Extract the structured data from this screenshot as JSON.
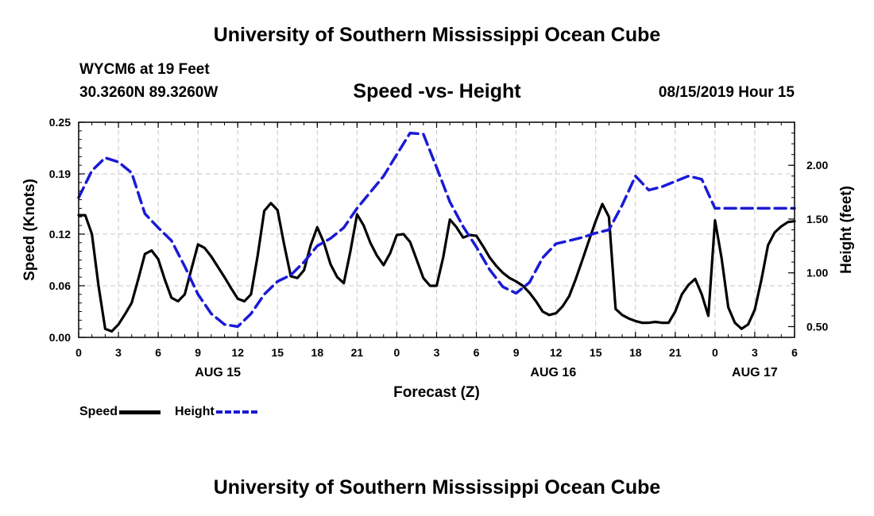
{
  "header": {
    "title": "University of Southern Mississippi Ocean Cube",
    "station": "WYCM6 at 19 Feet",
    "coords": "30.3260N 89.3260W",
    "subtitle": "Speed -vs- Height",
    "datestamp": "08/15/2019 Hour 15"
  },
  "footer": {
    "title": "University of Southern Mississippi Ocean Cube"
  },
  "legend": {
    "speed_label": "Speed",
    "height_label": "Height"
  },
  "chart_data": {
    "type": "line",
    "xlabel": "Forecast (Z)",
    "ylabel_left": "Speed (Knots)",
    "ylabel_right": "Height (feet)",
    "x_unit": "hours since AUG 15 00Z",
    "xlim": [
      0,
      54
    ],
    "ylim_left": [
      0,
      0.25
    ],
    "ylim_right": [
      0.4,
      2.4
    ],
    "x_ticks": [
      0,
      3,
      6,
      9,
      12,
      15,
      18,
      21,
      24,
      27,
      30,
      33,
      36,
      39,
      42,
      45,
      48,
      51,
      54
    ],
    "x_tick_labels": [
      "0",
      "3",
      "6",
      "9",
      "12",
      "15",
      "18",
      "21",
      "0",
      "3",
      "6",
      "9",
      "12",
      "15",
      "18",
      "21",
      "0",
      "3",
      "6"
    ],
    "day_labels": [
      {
        "x": 10.5,
        "label": "AUG 15"
      },
      {
        "x": 35.8,
        "label": "AUG 16"
      },
      {
        "x": 51,
        "label": "AUG 17"
      }
    ],
    "y_left_ticks": [
      0,
      0.06,
      0.12,
      0.19,
      0.25
    ],
    "y_left_tick_labels": [
      "0.00",
      "0.06",
      "0.12",
      "0.19",
      "0.25"
    ],
    "y_right_ticks": [
      0.5,
      1.0,
      1.5,
      2.0
    ],
    "y_right_tick_labels": [
      "0.50",
      "1.00",
      "1.50",
      "2.00"
    ],
    "grid": true,
    "series": [
      {
        "name": "Speed",
        "axis": "left",
        "color": "#000000",
        "style": "solid",
        "x": [
          0,
          0.5,
          1,
          1.5,
          2,
          2.5,
          3,
          3.5,
          4,
          4.5,
          5,
          5.5,
          6,
          6.5,
          7,
          7.5,
          8,
          8.5,
          9,
          9.5,
          10,
          10.5,
          11,
          11.5,
          12,
          12.5,
          13,
          13.5,
          14,
          14.5,
          15,
          15.5,
          16,
          16.5,
          17,
          17.5,
          18,
          18.5,
          19,
          19.5,
          20,
          20.5,
          21,
          21.5,
          22,
          22.5,
          23,
          23.5,
          24,
          24.5,
          25,
          25.5,
          26,
          26.5,
          27,
          27.5,
          28,
          28.5,
          29,
          29.5,
          30,
          30.5,
          31,
          31.5,
          32,
          32.5,
          33,
          33.5,
          34,
          34.5,
          35,
          35.5,
          36,
          36.5,
          37,
          37.5,
          38,
          38.5,
          39,
          39.5,
          40,
          40.5,
          41,
          41.5,
          42,
          42.5,
          43,
          43.5,
          44,
          44.5,
          45,
          45.5,
          46,
          46.5,
          47,
          47.5,
          48,
          48.5,
          49,
          49.5,
          50,
          50.5,
          51,
          51.5,
          52,
          52.5,
          53,
          53.5,
          54
        ],
        "values": [
          0.142,
          0.142,
          0.12,
          0.06,
          0.01,
          0.007,
          0.015,
          0.027,
          0.04,
          0.068,
          0.097,
          0.101,
          0.091,
          0.067,
          0.046,
          0.042,
          0.05,
          0.079,
          0.108,
          0.104,
          0.094,
          0.082,
          0.07,
          0.057,
          0.045,
          0.042,
          0.05,
          0.095,
          0.147,
          0.156,
          0.148,
          0.108,
          0.071,
          0.069,
          0.078,
          0.107,
          0.128,
          0.11,
          0.085,
          0.07,
          0.063,
          0.1,
          0.143,
          0.13,
          0.11,
          0.095,
          0.084,
          0.098,
          0.119,
          0.12,
          0.111,
          0.09,
          0.069,
          0.06,
          0.06,
          0.093,
          0.137,
          0.128,
          0.116,
          0.119,
          0.118,
          0.106,
          0.093,
          0.083,
          0.075,
          0.069,
          0.065,
          0.06,
          0.052,
          0.042,
          0.03,
          0.026,
          0.028,
          0.036,
          0.048,
          0.068,
          0.09,
          0.113,
          0.135,
          0.155,
          0.14,
          0.033,
          0.026,
          0.022,
          0.019,
          0.017,
          0.017,
          0.018,
          0.017,
          0.017,
          0.03,
          0.05,
          0.061,
          0.068,
          0.05,
          0.025,
          0.136,
          0.092,
          0.035,
          0.017,
          0.01,
          0.015,
          0.032,
          0.067,
          0.107,
          0.122,
          0.129,
          0.134,
          0.135
        ]
      },
      {
        "name": "Height",
        "axis": "right",
        "color": "#1a1ad6",
        "style": "dashed",
        "x": [
          0,
          1,
          2,
          3,
          4,
          5,
          6,
          7,
          8,
          9,
          10,
          11,
          12,
          13,
          14,
          15,
          16,
          17,
          18,
          19,
          20,
          21,
          22,
          23,
          24,
          25,
          26,
          27,
          28,
          29,
          30,
          31,
          32,
          33,
          34,
          35,
          36,
          37,
          38,
          39,
          40,
          41,
          42,
          43,
          44,
          45,
          46,
          47,
          48,
          49,
          50,
          51,
          52,
          53,
          54
        ],
        "values": [
          1.7,
          1.95,
          2.07,
          2.03,
          1.93,
          1.55,
          1.42,
          1.3,
          1.06,
          0.8,
          0.62,
          0.52,
          0.5,
          0.62,
          0.8,
          0.92,
          0.98,
          1.1,
          1.25,
          1.32,
          1.42,
          1.6,
          1.75,
          1.9,
          2.1,
          2.3,
          2.29,
          1.98,
          1.66,
          1.43,
          1.24,
          1.03,
          0.87,
          0.81,
          0.91,
          1.14,
          1.27,
          1.3,
          1.33,
          1.37,
          1.4,
          1.63,
          1.9,
          1.77,
          1.8,
          1.85,
          1.9,
          1.87,
          1.6,
          1.6,
          1.6,
          1.6,
          1.6,
          1.6,
          1.6
        ]
      }
    ]
  }
}
